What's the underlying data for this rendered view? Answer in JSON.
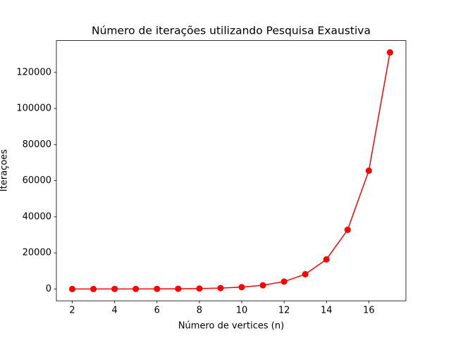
{
  "chart_data": {
    "type": "line",
    "title": "Número de iterações utilizando Pesquisa Exaustiva",
    "x_label": "Número de vertices (n)",
    "y_label": "Iteraçoes",
    "x": [
      2,
      3,
      4,
      5,
      6,
      7,
      8,
      9,
      10,
      11,
      12,
      13,
      14,
      15,
      16,
      17
    ],
    "series": [
      {
        "name": "Iterações",
        "color": "#ff0000",
        "values": [
          4,
          8,
          16,
          32,
          64,
          128,
          256,
          512,
          1024,
          2048,
          4096,
          8192,
          16384,
          32768,
          65536,
          131072
        ]
      }
    ],
    "xlim": [
      1.25,
      17.75
    ],
    "xticks": [
      2,
      4,
      6,
      8,
      10,
      12,
      14,
      16
    ],
    "ylim": [
      -6550,
      137625
    ],
    "yticks": [
      0,
      20000,
      40000,
      60000,
      80000,
      100000,
      120000
    ],
    "grid": false
  }
}
